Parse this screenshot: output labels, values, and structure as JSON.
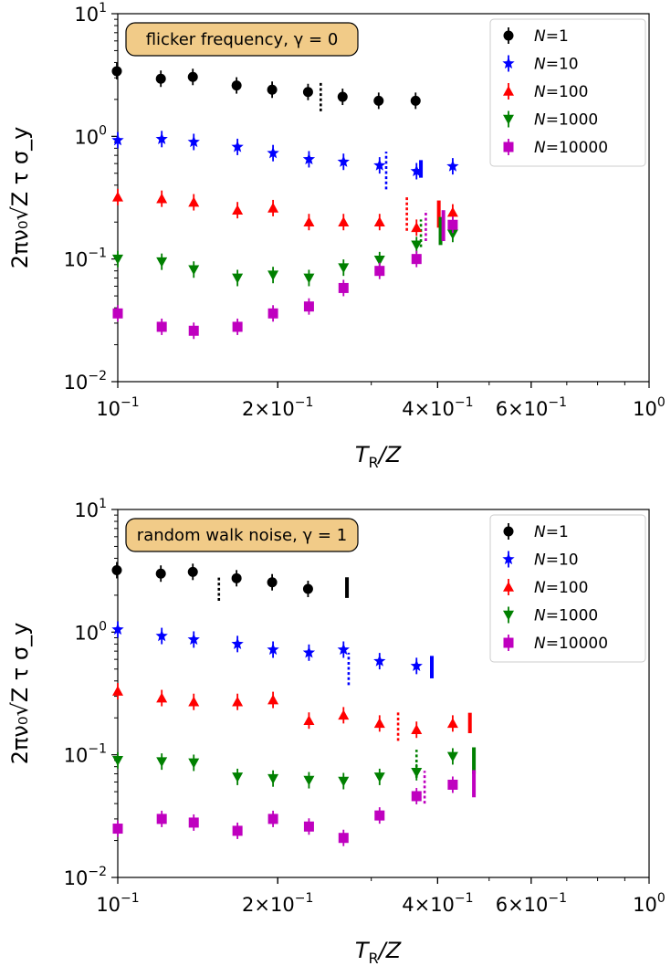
{
  "colors": {
    "N=1": "#000000",
    "N=10": "#0000ff",
    "N=100": "#ff0000",
    "N=1000": "#008000",
    "N=10000": "#bf00bf",
    "annotation_fill": "#f1cb88"
  },
  "chart_data": [
    {
      "type": "scatter",
      "annotation": "flicker frequency, γ = 0",
      "xlabel_main": "T",
      "xlabel_sub": "R",
      "xlabel_rest": "/Z",
      "ylabel": "2πν₀√Z τ σ_y",
      "xscale": "log",
      "yscale": "log",
      "xlim": [
        0.1,
        1.0
      ],
      "ylim": [
        0.01,
        10
      ],
      "x_ticks": [
        {
          "value": 0.1,
          "base": "10",
          "exp": "−1"
        },
        {
          "value": 0.2,
          "base": "2×10",
          "exp": "−1"
        },
        {
          "value": 0.4,
          "base": "4×10",
          "exp": "−1"
        },
        {
          "value": 0.6,
          "base": "6×10",
          "exp": "−1"
        },
        {
          "value": 1.0,
          "base": "10",
          "exp": "0"
        }
      ],
      "y_ticks": [
        {
          "value": 0.01,
          "base": "10",
          "exp": "−2"
        },
        {
          "value": 0.1,
          "base": "10",
          "exp": "−1"
        },
        {
          "value": 1,
          "base": "10",
          "exp": "0"
        },
        {
          "value": 10,
          "base": "10",
          "exp": "1"
        }
      ],
      "series": [
        {
          "name": "N=1",
          "label_var": "N",
          "label_val": "=1",
          "marker": "circle",
          "x": [
            0.1,
            0.121,
            0.139,
            0.168,
            0.196,
            0.229,
            0.266,
            0.311,
            0.365
          ],
          "y": [
            3.4,
            2.95,
            3.05,
            2.6,
            2.4,
            2.3,
            2.1,
            1.95,
            1.95
          ]
        },
        {
          "name": "N=10",
          "label_var": "N",
          "label_val": "=10",
          "marker": "star",
          "x": [
            0.1,
            0.121,
            0.139,
            0.168,
            0.196,
            0.229,
            0.266,
            0.311,
            0.365,
            0.427
          ],
          "y": [
            0.93,
            0.95,
            0.9,
            0.82,
            0.73,
            0.65,
            0.62,
            0.58,
            0.52,
            0.57
          ]
        },
        {
          "name": "N=100",
          "label_var": "N",
          "label_val": "=100",
          "marker": "triangle-up",
          "x": [
            0.1,
            0.121,
            0.139,
            0.168,
            0.196,
            0.229,
            0.266,
            0.311,
            0.365,
            0.427
          ],
          "y": [
            0.32,
            0.31,
            0.29,
            0.25,
            0.26,
            0.2,
            0.2,
            0.2,
            0.18,
            0.24
          ]
        },
        {
          "name": "N=1000",
          "label_var": "N",
          "label_val": "=1000",
          "marker": "triangle-down",
          "x": [
            0.1,
            0.121,
            0.139,
            0.168,
            0.196,
            0.229,
            0.266,
            0.311,
            0.365,
            0.427
          ],
          "y": [
            0.1,
            0.095,
            0.082,
            0.07,
            0.074,
            0.07,
            0.085,
            0.098,
            0.13,
            0.16
          ]
        },
        {
          "name": "N=10000",
          "label_var": "N",
          "label_val": "=10000",
          "marker": "square",
          "x": [
            0.1,
            0.121,
            0.139,
            0.168,
            0.196,
            0.229,
            0.266,
            0.311,
            0.365,
            0.427
          ],
          "y": [
            0.036,
            0.028,
            0.026,
            0.028,
            0.036,
            0.041,
            0.058,
            0.08,
            0.1,
            0.19
          ]
        }
      ],
      "vlines": [
        {
          "series": "N=1",
          "style": "dotted",
          "x": 0.241,
          "y1": 1.6,
          "y2": 2.8
        },
        {
          "series": "N=10",
          "style": "dotted",
          "x": 0.32,
          "y1": 0.37,
          "y2": 0.75
        },
        {
          "series": "N=10",
          "style": "solid",
          "x": 0.372,
          "y1": 0.46,
          "y2": 0.64
        },
        {
          "series": "N=100",
          "style": "dotted",
          "x": 0.35,
          "y1": 0.17,
          "y2": 0.32
        },
        {
          "series": "N=100",
          "style": "solid",
          "x": 0.402,
          "y1": 0.18,
          "y2": 0.3
        },
        {
          "series": "N=1000",
          "style": "dotted",
          "x": 0.372,
          "y1": 0.125,
          "y2": 0.21
        },
        {
          "series": "N=1000",
          "style": "solid",
          "x": 0.405,
          "y1": 0.13,
          "y2": 0.22
        },
        {
          "series": "N=10000",
          "style": "dotted",
          "x": 0.38,
          "y1": 0.14,
          "y2": 0.25
        },
        {
          "series": "N=10000",
          "style": "solid",
          "x": 0.41,
          "y1": 0.14,
          "y2": 0.25
        }
      ]
    },
    {
      "type": "scatter",
      "annotation": "random walk noise, γ = 1",
      "xlabel_main": "T",
      "xlabel_sub": "R",
      "xlabel_rest": "/Z",
      "ylabel": "2πν₀√Z τ σ_y",
      "xscale": "log",
      "yscale": "log",
      "xlim": [
        0.1,
        1.0
      ],
      "ylim": [
        0.01,
        10
      ],
      "x_ticks": [
        {
          "value": 0.1,
          "base": "10",
          "exp": "−1"
        },
        {
          "value": 0.2,
          "base": "2×10",
          "exp": "−1"
        },
        {
          "value": 0.4,
          "base": "4×10",
          "exp": "−1"
        },
        {
          "value": 0.6,
          "base": "6×10",
          "exp": "−1"
        },
        {
          "value": 1.0,
          "base": "10",
          "exp": "0"
        }
      ],
      "y_ticks": [
        {
          "value": 0.01,
          "base": "10",
          "exp": "−2"
        },
        {
          "value": 0.1,
          "base": "10",
          "exp": "−1"
        },
        {
          "value": 1,
          "base": "10",
          "exp": "0"
        },
        {
          "value": 10,
          "base": "10",
          "exp": "1"
        }
      ],
      "series": [
        {
          "name": "N=1",
          "label_var": "N",
          "label_val": "=1",
          "marker": "circle",
          "x": [
            0.1,
            0.121,
            0.139,
            0.168,
            0.196,
            0.229
          ],
          "y": [
            3.2,
            3.0,
            3.1,
            2.75,
            2.55,
            2.25
          ]
        },
        {
          "name": "N=10",
          "label_var": "N",
          "label_val": "=10",
          "marker": "star",
          "x": [
            0.1,
            0.121,
            0.139,
            0.168,
            0.196,
            0.229,
            0.266,
            0.311,
            0.365
          ],
          "y": [
            1.05,
            0.93,
            0.87,
            0.8,
            0.72,
            0.68,
            0.72,
            0.58,
            0.53
          ]
        },
        {
          "name": "N=100",
          "label_var": "N",
          "label_val": "=100",
          "marker": "triangle-up",
          "x": [
            0.1,
            0.121,
            0.139,
            0.168,
            0.196,
            0.229,
            0.266,
            0.311,
            0.365,
            0.427
          ],
          "y": [
            0.33,
            0.29,
            0.27,
            0.27,
            0.28,
            0.19,
            0.21,
            0.18,
            0.16,
            0.18
          ]
        },
        {
          "name": "N=1000",
          "label_var": "N",
          "label_val": "=1000",
          "marker": "triangle-down",
          "x": [
            0.1,
            0.121,
            0.139,
            0.168,
            0.196,
            0.229,
            0.266,
            0.311,
            0.365,
            0.427
          ],
          "y": [
            0.09,
            0.088,
            0.086,
            0.066,
            0.064,
            0.062,
            0.061,
            0.066,
            0.072,
            0.097
          ]
        },
        {
          "name": "N=10000",
          "label_var": "N",
          "label_val": "=10000",
          "marker": "square",
          "x": [
            0.1,
            0.121,
            0.139,
            0.168,
            0.196,
            0.229,
            0.266,
            0.311,
            0.365,
            0.427
          ],
          "y": [
            0.025,
            0.03,
            0.028,
            0.024,
            0.03,
            0.026,
            0.021,
            0.032,
            0.046,
            0.057
          ]
        }
      ],
      "vlines": [
        {
          "series": "N=1",
          "style": "dotted",
          "x": 0.155,
          "y1": 1.8,
          "y2": 2.9
        },
        {
          "series": "N=1",
          "style": "solid",
          "x": 0.27,
          "y1": 1.9,
          "y2": 2.8
        },
        {
          "series": "N=10",
          "style": "dotted",
          "x": 0.272,
          "y1": 0.37,
          "y2": 0.68
        },
        {
          "series": "N=10",
          "style": "solid",
          "x": 0.39,
          "y1": 0.42,
          "y2": 0.64
        },
        {
          "series": "N=100",
          "style": "dotted",
          "x": 0.337,
          "y1": 0.13,
          "y2": 0.23
        },
        {
          "series": "N=100",
          "style": "solid",
          "x": 0.46,
          "y1": 0.15,
          "y2": 0.22
        },
        {
          "series": "N=1000",
          "style": "dotted",
          "x": 0.365,
          "y1": 0.065,
          "y2": 0.11
        },
        {
          "series": "N=1000",
          "style": "solid",
          "x": 0.468,
          "y1": 0.07,
          "y2": 0.115
        },
        {
          "series": "N=10000",
          "style": "dotted",
          "x": 0.378,
          "y1": 0.04,
          "y2": 0.074
        },
        {
          "series": "N=10000",
          "style": "solid",
          "x": 0.468,
          "y1": 0.045,
          "y2": 0.075
        }
      ]
    }
  ]
}
